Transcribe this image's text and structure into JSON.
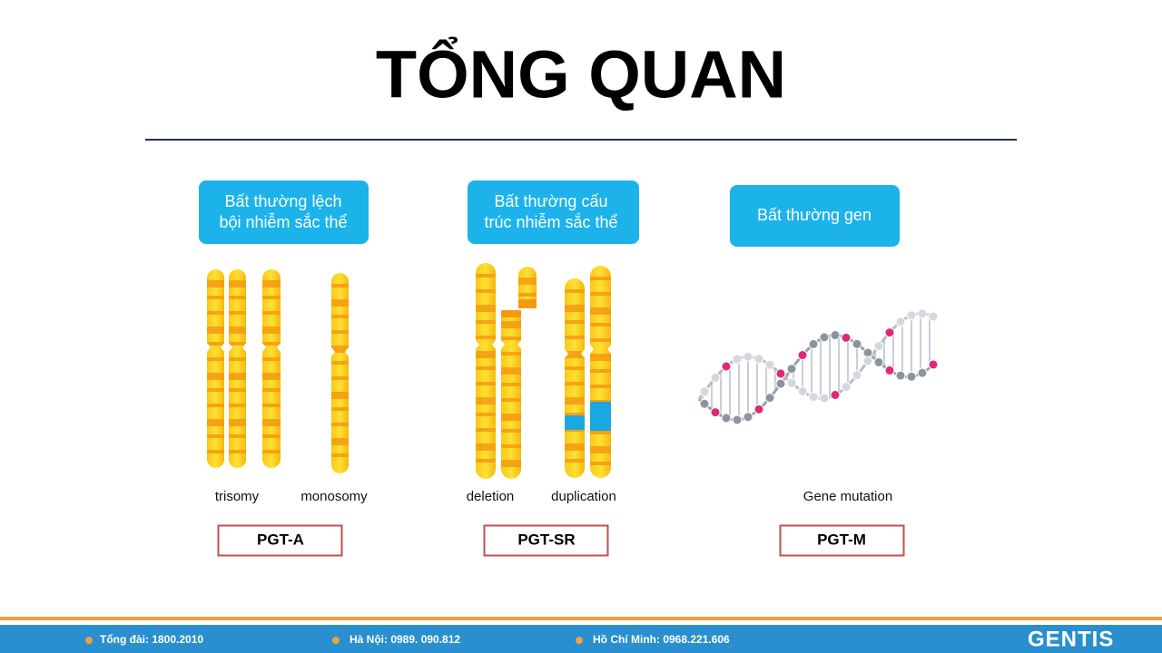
{
  "title": "TỔNG QUAN",
  "columns": [
    {
      "box": [
        "Bất thường lệch",
        "bội nhiễm sắc thể"
      ],
      "labels": [
        "trisomy",
        "monosomy"
      ],
      "tag": "PGT-A"
    },
    {
      "box": [
        "Bất thường cấu",
        "trúc nhiễm sắc thể"
      ],
      "labels": [
        "deletion",
        "duplication"
      ],
      "tag": "PGT-SR"
    },
    {
      "box": [
        "Bất thường gen"
      ],
      "labels": [
        "Gene mutation"
      ],
      "tag": "PGT-M"
    }
  ],
  "footer": {
    "contacts": [
      "Tổng đài: 1800.2010",
      "Hà Nội: 0989. 090.812",
      "Hồ Chí Minh: 0968.221.606"
    ],
    "logo": "GENTIS"
  }
}
